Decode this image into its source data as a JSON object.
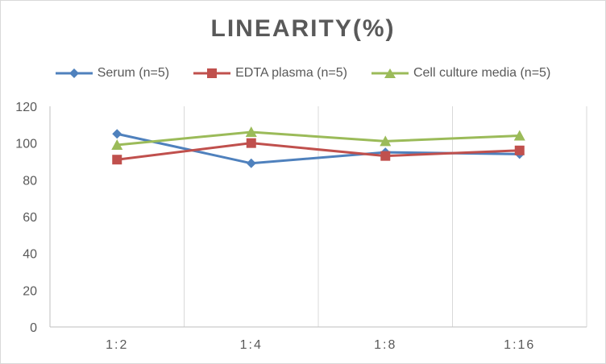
{
  "chart_data": {
    "type": "line",
    "title": "LINEARITY(%)",
    "xlabel": "",
    "ylabel": "",
    "categories": [
      "1:2",
      "1:4",
      "1:8",
      "1:16"
    ],
    "ylim": [
      0,
      120
    ],
    "yticks": [
      0,
      20,
      40,
      60,
      80,
      100,
      120
    ],
    "grid": {
      "vertical": true,
      "horizontal": false
    },
    "legend_position": "top",
    "series": [
      {
        "name": "Serum (n=5)",
        "values": [
          105,
          89,
          95,
          94
        ],
        "color": "#4f81bd",
        "marker": "diamond"
      },
      {
        "name": "EDTA plasma (n=5)",
        "values": [
          91,
          100,
          93,
          96
        ],
        "color": "#c0504d",
        "marker": "square"
      },
      {
        "name": "Cell culture media (n=5)",
        "values": [
          99,
          106,
          101,
          104
        ],
        "color": "#9bbb59",
        "marker": "triangle"
      }
    ]
  }
}
